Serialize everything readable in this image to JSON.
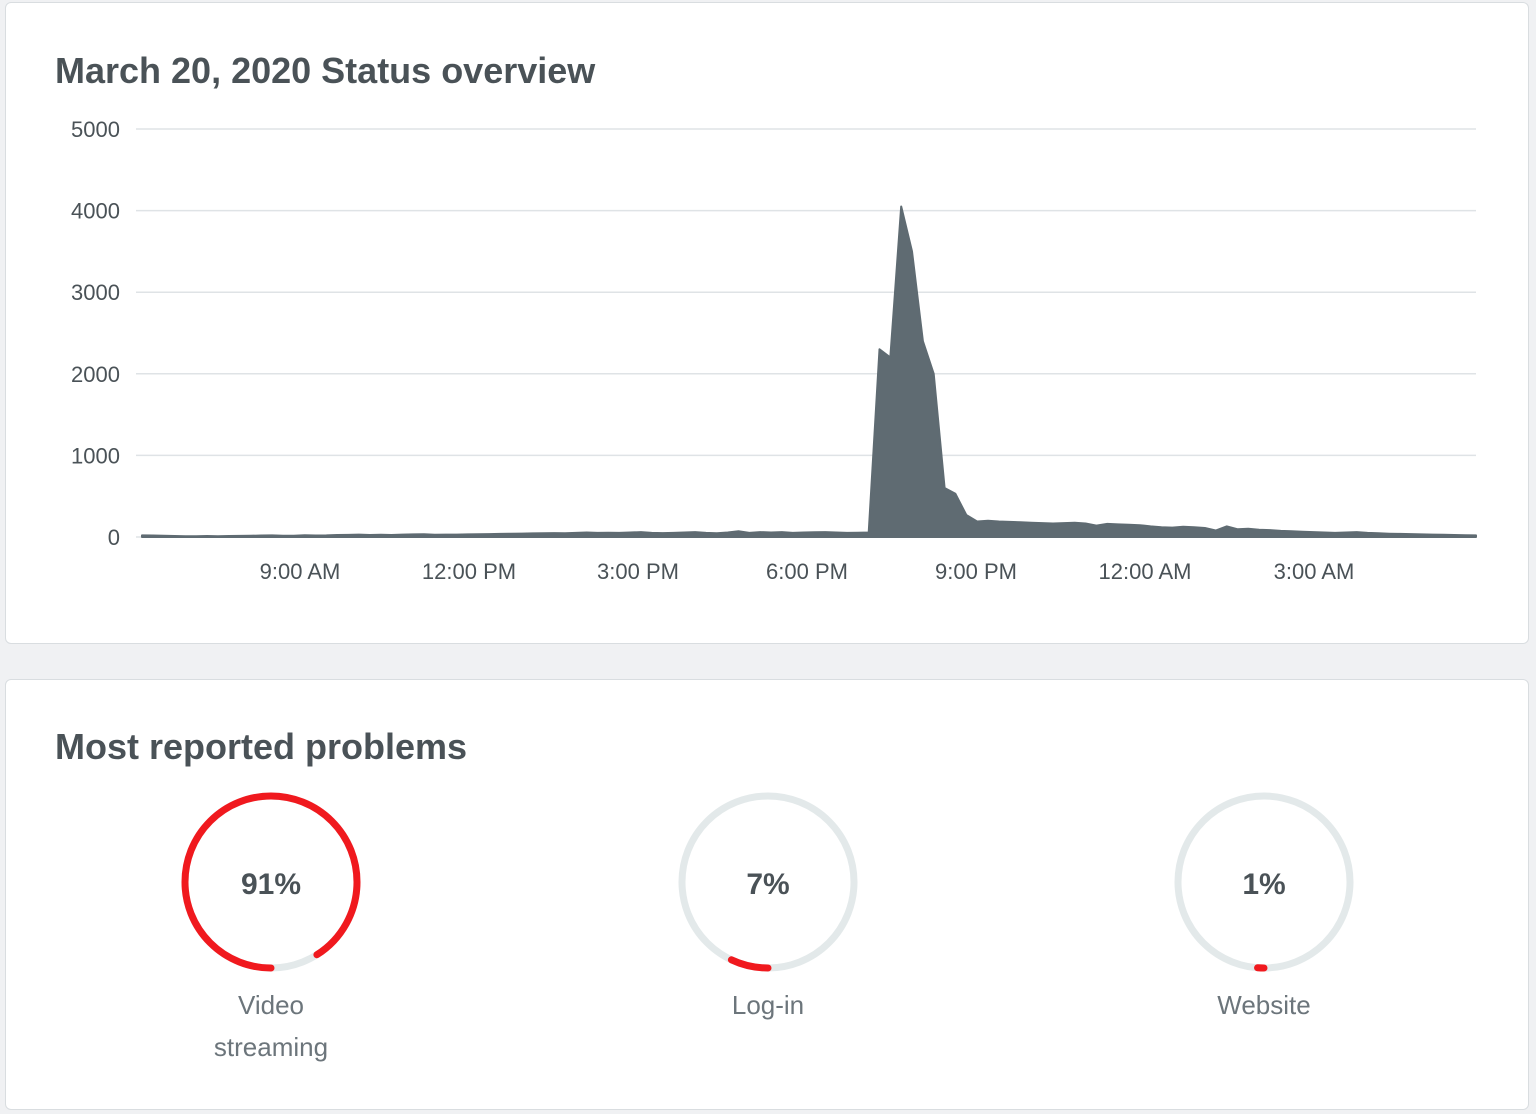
{
  "status": {
    "title": "March 20, 2020 Status overview"
  },
  "chart_data": {
    "type": "area",
    "title": "March 20, 2020 Status overview",
    "xlabel": "",
    "ylabel": "",
    "ylim": [
      0,
      5000
    ],
    "yticks": [
      "0",
      "1000",
      "2000",
      "3000",
      "4000",
      "5000"
    ],
    "xticks": [
      "9:00 AM",
      "12:00 PM",
      "3:00 PM",
      "6:00 PM",
      "9:00 PM",
      "12:00 AM",
      "3:00 AM"
    ],
    "grid": true,
    "color": "#5f6b72",
    "series": [
      {
        "values": [
          20,
          18,
          15,
          12,
          10,
          8,
          12,
          10,
          12,
          14,
          15,
          18,
          20,
          15,
          16,
          22,
          18,
          20,
          24,
          26,
          30,
          24,
          28,
          25,
          30,
          32,
          34,
          28,
          30,
          30,
          32,
          34,
          36,
          38,
          40,
          42,
          44,
          46,
          48,
          45,
          50,
          55,
          50,
          52,
          50,
          55,
          60,
          50,
          48,
          50,
          55,
          60,
          50,
          45,
          55,
          70,
          50,
          60,
          55,
          60,
          50,
          55,
          58,
          60,
          55,
          50,
          52,
          55,
          2300,
          2200,
          4050,
          3500,
          2400,
          2000,
          600,
          530,
          270,
          190,
          200,
          190,
          185,
          180,
          175,
          170,
          165,
          170,
          175,
          165,
          140,
          160,
          155,
          150,
          145,
          130,
          120,
          115,
          125,
          120,
          110,
          80,
          130,
          95,
          100,
          90,
          85,
          75,
          70,
          65,
          60,
          55,
          50,
          55,
          60,
          50,
          45,
          40,
          38,
          35,
          32,
          30,
          28,
          25,
          22,
          20
        ]
      }
    ]
  },
  "problems": {
    "title": "Most reported problems",
    "items": [
      {
        "pct_label": "91%",
        "value": 91,
        "label": "Video streaming"
      },
      {
        "pct_label": "7%",
        "value": 7,
        "label": "Log-in"
      },
      {
        "pct_label": "1%",
        "value": 1,
        "label": "Website"
      }
    ],
    "ring_color": "#f0191e",
    "track_color": "#e3e9ea"
  }
}
